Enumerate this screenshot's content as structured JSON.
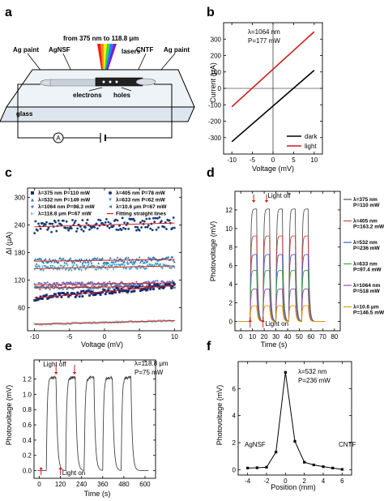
{
  "panel_a": {
    "label": "a",
    "wavelength_text": "from  375 nm  to 118.8 μm",
    "labels": {
      "lasers": "lasers",
      "ag_paint_left": "Ag paint",
      "agnsf": "AgNSF",
      "cntf": "CNTF",
      "ag_paint_right": "Ag paint",
      "electrons": "electrons",
      "holes": "holes",
      "glass": "glass",
      "ammeter": "A"
    },
    "colors": {
      "laser": [
        "#ff0000",
        "#ff8000",
        "#ffee00",
        "#33cc33",
        "#0077ff",
        "#7700cc"
      ]
    }
  },
  "chart_data": [
    {
      "id": "b",
      "label": "b",
      "type": "line",
      "xlabel": "Voltage (mV)",
      "ylabel": "Current (μA)",
      "xlim": [
        -12,
        12
      ],
      "ylim": [
        -400,
        400
      ],
      "xticks": [
        -10,
        -5,
        0,
        5,
        10
      ],
      "yticks": [
        -300,
        -200,
        -100,
        0,
        100,
        200,
        300
      ],
      "annotation": [
        "λ=1064 nm",
        "P=177 mW"
      ],
      "legend_position": "bottom-right",
      "series": [
        {
          "name": "dark",
          "color": "#000000",
          "x": [
            -10,
            10
          ],
          "y": [
            -325,
            110
          ]
        },
        {
          "name": "light",
          "color": "#d01c1c",
          "x": [
            -10,
            10
          ],
          "y": [
            -112,
            345
          ]
        }
      ]
    },
    {
      "id": "c",
      "label": "c",
      "type": "scatter",
      "xlabel": "Voltage (mV)",
      "ylabel": "ΔI (μA)",
      "xlim": [
        -11,
        11
      ],
      "ylim": [
        10,
        320
      ],
      "xticks": [
        -10,
        -5,
        0,
        5,
        10
      ],
      "yticks": [
        60,
        120,
        180,
        240,
        300
      ],
      "legend_position": "top",
      "legend": [
        {
          "text": "λ=375 nm  P=110 mW",
          "color": "#1a2a6e",
          "marker": "square"
        },
        {
          "text": "λ=405 nm  P=78 mW",
          "color": "#143c78",
          "marker": "circle"
        },
        {
          "text": "λ=532 nm  P=149 mW",
          "color": "#2a7fb8",
          "marker": "triangle"
        },
        {
          "text": "λ=633 nm  P=62 mW",
          "color": "#3fa6c8",
          "marker": "triangle-down"
        },
        {
          "text": "λ=1064 nm  P=98.3 mW",
          "color": "#6e6ec8",
          "marker": "diamond"
        },
        {
          "text": "λ=10.6 μm  P=67 mW",
          "color": "#4a7a9a",
          "marker": "triangle-left"
        },
        {
          "text": "λ=118.8 μm  P=67 mW",
          "color": "#9ac2c8",
          "marker": "triangle-right"
        },
        {
          "text": "Fitting straight lines",
          "color": "#d01c1c",
          "marker": "line"
        }
      ],
      "series": [
        {
          "name": "λ=405 nm  P=78 mW",
          "color": "#143c78",
          "center": 240,
          "slope": 0.4,
          "noise": 14
        },
        {
          "name": "λ=532 nm  P=149 mW",
          "color": "#2a7fb8",
          "center": 163,
          "slope": 0.2,
          "noise": 6
        },
        {
          "name": "λ=633 nm  P=62 mW",
          "color": "#3fa6c8",
          "center": 148,
          "slope": 0.3,
          "noise": 6
        },
        {
          "name": "λ=1064 nm  P=98.3 mW",
          "color": "#6e6ec8",
          "center": 112,
          "slope": 0.2,
          "noise": 5
        },
        {
          "name": "λ=10.6 μm  P=67 mW",
          "color": "#4a7a9a",
          "center": 105,
          "slope": 0.2,
          "noise": 4
        },
        {
          "name": "λ=375 nm  P=110 mW",
          "color": "#1a2a6e",
          "center": 95,
          "slope": 1.4,
          "noise": 6
        },
        {
          "name": "λ=118.8 μm  P=67 mW",
          "color": "#9ac2c8",
          "center": 28,
          "slope": 0.4,
          "noise": 2
        }
      ]
    },
    {
      "id": "d",
      "label": "d",
      "type": "line",
      "xlabel": "Time (s)",
      "ylabel": "Photovoltage (mV)",
      "xlim": [
        -5,
        85
      ],
      "ylim": [
        -1,
        14
      ],
      "xticks": [
        0,
        10,
        20,
        30,
        40,
        50,
        60,
        70,
        80
      ],
      "yticks": [
        0,
        2,
        4,
        6,
        8,
        10,
        12
      ],
      "annotations": {
        "light_off": "Light off",
        "light_on": "Light on"
      },
      "on_times": [
        8,
        19,
        30,
        41,
        52
      ],
      "period_on": 5.5,
      "legend_position": "right",
      "series": [
        {
          "name": "λ=375 nm\nP=110 mW",
          "color": "#555555",
          "level": 12.1
        },
        {
          "name": "λ=405 nm\nP=163.2 mW",
          "color": "#d04a4a",
          "level": 9.2
        },
        {
          "name": "λ=532 nm\nP=236 mW",
          "color": "#4a5ec8",
          "level": 7.2
        },
        {
          "name": "λ=633 nm\nP=97.4 mW",
          "color": "#3aaa4a",
          "level": 5.5
        },
        {
          "name": "λ=1064 nm\nP=518 mW",
          "color": "#9a4ab0",
          "level": 3.5
        },
        {
          "name": "λ=10.6 μm\nP=146.5 mW",
          "color": "#e0a000",
          "level": 1.7
        }
      ]
    },
    {
      "id": "e",
      "label": "e",
      "type": "line",
      "xlabel": "Time (s)",
      "ylabel": "Photovoltage (mV)",
      "xlim": [
        -30,
        660
      ],
      "ylim": [
        -0.1,
        1.45
      ],
      "xticks": [
        0,
        120,
        240,
        360,
        480,
        600
      ],
      "yticks": [
        0.0,
        0.2,
        0.4,
        0.6,
        0.8,
        1.0,
        1.2
      ],
      "annotation": [
        "λ=118.8 μm",
        "P=75 mW"
      ],
      "annotations": {
        "light_off": "Light off",
        "light_on": "Light on"
      },
      "on_times": [
        40,
        150,
        255,
        360,
        465
      ],
      "period_on": 55,
      "series": [
        {
          "name": "",
          "color": "#444444",
          "level": 1.22
        }
      ]
    },
    {
      "id": "f",
      "label": "f",
      "type": "line",
      "xlabel": "Position (mm)",
      "ylabel": "Photovoltage (mV)",
      "xlim": [
        -5,
        7
      ],
      "ylim": [
        -0.4,
        8
      ],
      "xticks": [
        -4,
        -2,
        0,
        2,
        4,
        6
      ],
      "yticks": [
        0,
        2,
        4,
        6
      ],
      "annotation": [
        "λ=532 nm",
        "P=236 mW"
      ],
      "region_labels": {
        "left": "AgNSF",
        "right": "CNTF"
      },
      "series": [
        {
          "name": "",
          "color": "#000000",
          "x": [
            -4,
            -3,
            -2,
            -1,
            0,
            1,
            2,
            3,
            4,
            5,
            6
          ],
          "y": [
            0.12,
            0.14,
            0.18,
            1.3,
            7.2,
            2.1,
            0.55,
            0.35,
            0.22,
            0.12,
            0.02
          ]
        }
      ]
    }
  ]
}
